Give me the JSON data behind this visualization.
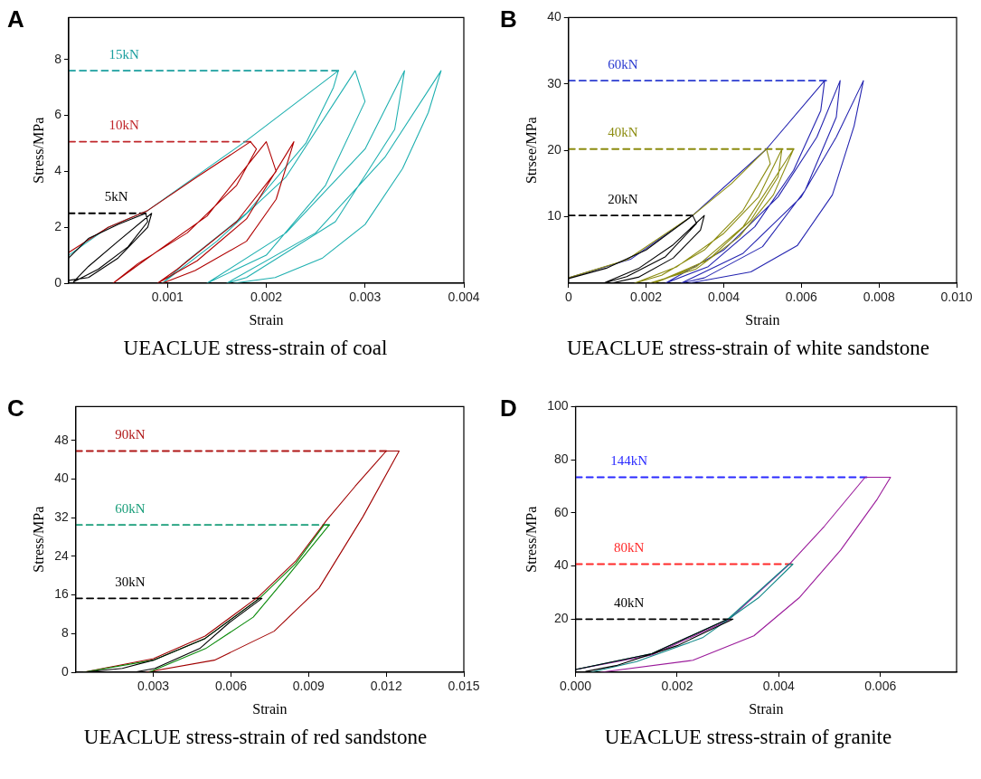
{
  "chart_data": [
    {
      "type": "line",
      "title": "A",
      "xlabel": "Strain",
      "ylabel": "Stress/MPa",
      "annotations": [
        "UEACLUE stress-strain of coal"
      ],
      "xlim": [
        0,
        0.004
      ],
      "ylim": [
        0,
        9.5
      ],
      "xticks": [
        0.001,
        0.002,
        0.003,
        0.004
      ],
      "yticks": [
        0,
        2,
        4,
        6,
        8
      ],
      "grid": false,
      "legend": false,
      "marker": "none",
      "series": [
        {
          "color": "#000000",
          "x": [
            0,
            0.0002,
            0.0005,
            0.00078,
            0.0008,
            0.0006,
            0.0003,
            5e-05,
            0.0002,
            0.0005,
            0.00084,
            0.0008,
            0.0005,
            0.0002,
            0
          ],
          "values": [
            0.9,
            1.6,
            2.1,
            2.5,
            2.2,
            1.3,
            0.5,
            0.05,
            0.6,
            1.5,
            2.5,
            2.0,
            0.9,
            0.2,
            0.1
          ]
        },
        {
          "color": "#b00000",
          "x": [
            0,
            0.0004,
            0.0008,
            0.0013,
            0.00184,
            0.0019,
            0.0017,
            0.0012,
            0.0007,
            0.00045,
            0.0008,
            0.0014,
            0.002,
            0.0021,
            0.0017,
            0.0011,
            0.0009,
            0.0013,
            0.0018,
            0.00228,
            0.0021,
            0.0018,
            0.00128,
            0.00095
          ],
          "values": [
            1.1,
            2.0,
            2.6,
            3.8,
            5.06,
            4.8,
            3.5,
            1.8,
            0.7,
            0,
            0.9,
            2.4,
            5.06,
            4.0,
            2.2,
            0.5,
            0,
            0.8,
            2.3,
            5.06,
            3.0,
            1.5,
            0.45,
            0
          ]
        },
        {
          "color": "#1fb0b0",
          "x": [
            0,
            0.0004,
            0.0008,
            0.0018,
            0.00273,
            0.00268,
            0.0024,
            0.0018,
            0.0012,
            0.00095,
            0.0015,
            0.0022,
            0.0029,
            0.003,
            0.0026,
            0.002,
            0.0014,
            0.0022,
            0.003,
            0.0034,
            0.0033,
            0.0027,
            0.0018,
            0.0016,
            0.0025,
            0.0032,
            0.00377,
            0.00364,
            0.00338,
            0.003,
            0.00257,
            0.00209,
            0.00167
          ],
          "values": [
            1.0,
            2.0,
            2.6,
            5.1,
            7.6,
            7.0,
            5.0,
            2.5,
            0.8,
            0,
            1.5,
            3.8,
            7.6,
            6.5,
            3.5,
            1.0,
            0,
            1.8,
            4.8,
            7.6,
            5.5,
            2.2,
            0.2,
            0,
            1.8,
            4.5,
            7.6,
            6.1,
            4.1,
            2.1,
            0.9,
            0.2,
            0
          ]
        },
        {
          "name": "15kN",
          "color": "#1a9e9e",
          "line_style": "dashed",
          "x": [
            0,
            0.00273
          ],
          "values": [
            7.6,
            7.6
          ]
        },
        {
          "name": "10kN",
          "color": "#c0262b",
          "line_style": "dashed",
          "x": [
            0,
            0.00184
          ],
          "values": [
            5.06,
            5.06
          ]
        },
        {
          "name": "5kN",
          "color": "#000000",
          "line_style": "dashed",
          "x": [
            0,
            0.00078
          ],
          "values": [
            2.5,
            2.5
          ]
        }
      ]
    },
    {
      "type": "line",
      "title": "B",
      "xlabel": "Strain",
      "ylabel": "Strsee/MPa",
      "annotations": [
        "UEACLUE stress-strain of white sandstone"
      ],
      "xlim": [
        0,
        0.01
      ],
      "ylim": [
        0,
        40
      ],
      "xticks": [
        0,
        0.002,
        0.004,
        0.006,
        0.008,
        {
          "value": 0.01,
          "label": "0.010"
        }
      ],
      "yticks": [
        10,
        20,
        30,
        40
      ],
      "grid": false,
      "legend": false,
      "marker": "none",
      "series": [
        {
          "color": "#000000",
          "x": [
            0,
            0.001,
            0.002,
            0.0032,
            0.0033,
            0.0025,
            0.0015,
            0.0009,
            0.0018,
            0.0027,
            0.0035,
            0.0034,
            0.0027,
            0.0018,
            0.0011
          ],
          "values": [
            0.7,
            2.3,
            5.0,
            10.2,
            9.0,
            4.0,
            1.0,
            0,
            2.2,
            5.8,
            10.2,
            8.0,
            3.8,
            0.9,
            0
          ]
        },
        {
          "color": "#8c8c10",
          "x": [
            0,
            0.0015,
            0.0032,
            0.0042,
            0.0051,
            0.0052,
            0.0045,
            0.0035,
            0.0024,
            0.0017,
            0.0028,
            0.004,
            0.0049,
            0.0055,
            0.0054,
            0.0047,
            0.0036,
            0.0022,
            0.0033,
            0.0045,
            0.0058,
            0.00528,
            0.0044,
            0.00328,
            0.00208
          ],
          "values": [
            0.8,
            3.5,
            10.2,
            15,
            20.2,
            18,
            11,
            5,
            1.2,
            0,
            2.5,
            7.5,
            13,
            20.2,
            16,
            9.5,
            3.5,
            0,
            2.5,
            8.5,
            20.2,
            13.3,
            7,
            2.1,
            0
          ]
        },
        {
          "color": "#2424b0",
          "x": [
            0,
            0.0016,
            0.0032,
            0.0051,
            0.0066,
            0.0065,
            0.0058,
            0.0048,
            0.0036,
            0.0025,
            0.004,
            0.0054,
            0.0064,
            0.007,
            0.0069,
            0.0061,
            0.005,
            0.0035,
            0.0029,
            0.0045,
            0.006,
            0.0069,
            0.0076,
            0.00736,
            0.0068,
            0.0059,
            0.0047,
            0.0031
          ],
          "values": [
            0.8,
            3.6,
            10.2,
            20.2,
            30.5,
            26,
            17,
            8.5,
            2.5,
            0,
            5,
            13,
            22,
            30.5,
            25,
            14,
            5.5,
            0.8,
            0,
            4.5,
            13,
            22,
            30.5,
            23.7,
            13.3,
            5.7,
            1.7,
            0
          ]
        },
        {
          "name": "60kN",
          "color": "#2b3bd0",
          "line_style": "dashed",
          "x": [
            0,
            0.00664
          ],
          "values": [
            30.5,
            30.5
          ]
        },
        {
          "name": "40kN",
          "color": "#8c8c10",
          "line_style": "dashed",
          "x": [
            0,
            0.0058
          ],
          "values": [
            20.2,
            20.2
          ]
        },
        {
          "name": "20kN",
          "color": "#000000",
          "line_style": "dashed",
          "x": [
            0,
            0.0032
          ],
          "values": [
            10.2,
            10.2
          ]
        }
      ]
    },
    {
      "type": "line",
      "title": "C",
      "xlabel": "Strain",
      "ylabel": "Stress/MPa",
      "annotations": [
        "UEACLUE stress-strain of red sandstone"
      ],
      "xlim": [
        0,
        0.015
      ],
      "ylim": [
        0,
        55
      ],
      "xticks": [
        0.003,
        0.006,
        0.009,
        0.012,
        0.015
      ],
      "yticks": [
        0,
        8,
        16,
        24,
        32,
        40,
        48
      ],
      "grid": false,
      "legend": false,
      "marker": "none",
      "series": [
        {
          "color": "#000000",
          "x": [
            0.0003,
            0.0018,
            0.003,
            0.005,
            0.0071,
            0.0072,
            0.00594,
            0.00479,
            0.00306,
            0.00225
          ],
          "values": [
            0,
            0.8,
            2.5,
            7,
            15.3,
            15.3,
            10.3,
            4.9,
            0.8,
            0
          ]
        },
        {
          "color": "#0a8a0a",
          "x": [
            0.0003,
            0.003,
            0.005,
            0.0071,
            0.0085,
            0.0096,
            0.0098,
            0.00825,
            0.00686,
            0.00502,
            0.00283
          ],
          "values": [
            0,
            2.5,
            7,
            15.3,
            22.5,
            30.5,
            30.5,
            20.3,
            11.4,
            4.9,
            0
          ]
        },
        {
          "color": "#a00000",
          "x": [
            0.0003,
            0.003,
            0.005,
            0.0071,
            0.0085,
            0.0097,
            0.0108,
            0.012,
            0.0125,
            0.0111,
            0.0094,
            0.00767,
            0.00536,
            0.00271
          ],
          "values": [
            0,
            2.8,
            7.5,
            15.8,
            23,
            31.5,
            38.5,
            45.8,
            45.8,
            32.2,
            17.4,
            8.5,
            2.5,
            0
          ]
        },
        {
          "name": "90kN",
          "color": "#b01818",
          "line_style": "dashed",
          "x": [
            0,
            0.012
          ],
          "values": [
            45.8,
            45.8
          ]
        },
        {
          "name": "60kN",
          "color": "#1a9e7a",
          "line_style": "dashed",
          "x": [
            0,
            0.0098
          ],
          "values": [
            30.5,
            30.5
          ]
        },
        {
          "name": "30kN",
          "color": "#000000",
          "line_style": "dashed",
          "x": [
            0,
            0.0071
          ],
          "values": [
            15.3,
            15.3
          ]
        }
      ]
    },
    {
      "type": "line",
      "title": "D",
      "xlabel": "Strain",
      "ylabel": "Stress/MPa",
      "annotations": [
        "UEACLUE stress-strain of granite"
      ],
      "xlim": [
        0,
        0.0075
      ],
      "ylim": [
        0,
        100
      ],
      "xticks": [
        {
          "value": 0,
          "label": "0.000"
        },
        0.002,
        0.004,
        0.006
      ],
      "yticks": [
        20,
        40,
        60,
        80,
        100
      ],
      "grid": false,
      "legend": false,
      "marker": "none",
      "series": [
        {
          "color": "#000000",
          "x": [
            0,
            0.0015,
            0.003,
            0.0031,
            0.002,
            0.0008,
            0.0002
          ],
          "values": [
            1,
            7,
            20,
            20,
            10,
            2.5,
            0.3
          ]
        },
        {
          "color": "#108888",
          "x": [
            0,
            0.0015,
            0.003,
            0.0042,
            0.00428,
            0.0036,
            0.0025,
            0.0012,
            0.0003
          ],
          "values": [
            1,
            7,
            20,
            40.7,
            40.7,
            28,
            13,
            4,
            0
          ]
        },
        {
          "color": "#9a1a9a",
          "x": [
            0,
            0.0015,
            0.003,
            0.0042,
            0.0049,
            0.0057,
            0.0062,
            0.00594,
            0.00522,
            0.0044,
            0.00351,
            0.00231,
            0.0005
          ],
          "values": [
            1,
            6.5,
            19.5,
            40.5,
            55,
            73.4,
            73.4,
            65.2,
            46,
            28,
            13.7,
            4.5,
            0
          ]
        },
        {
          "name": "144kN",
          "color": "#2a2aff",
          "line_style": "dashed",
          "x": [
            0,
            0.00573
          ],
          "values": [
            73.4,
            73.4
          ]
        },
        {
          "name": "80kN",
          "color": "#ff2a2a",
          "line_style": "dashed",
          "x": [
            0,
            0.00426
          ],
          "values": [
            40.7,
            40.7
          ]
        },
        {
          "name": "40kN",
          "color": "#000000",
          "line_style": "dashed",
          "x": [
            0,
            0.00303
          ],
          "values": [
            20,
            20
          ]
        }
      ]
    }
  ]
}
